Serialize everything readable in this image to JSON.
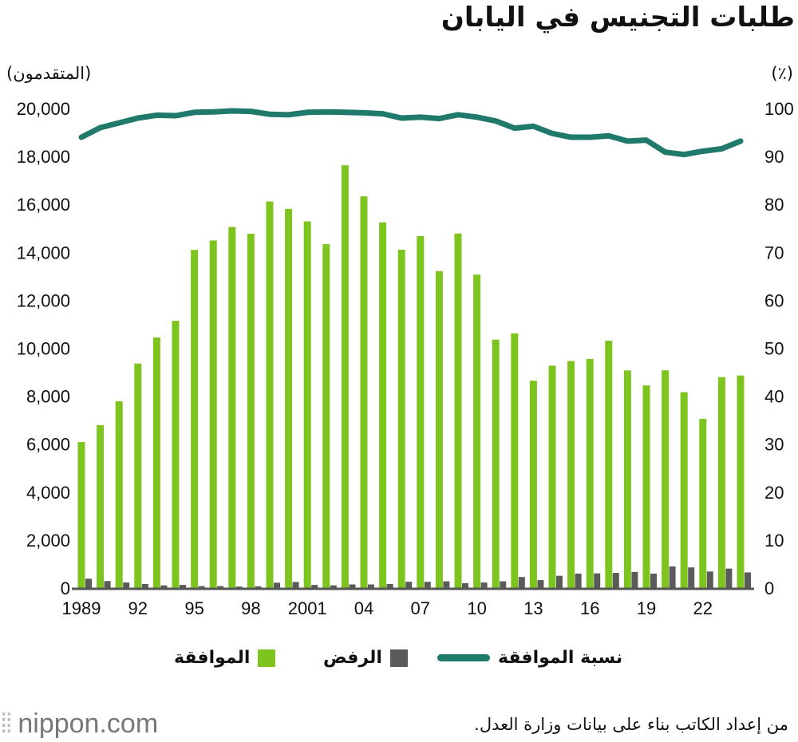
{
  "chart_data": {
    "type": "bar+line",
    "title": "طلبات التجنيس في اليابان",
    "ylabel_left": "(المتقدمون)",
    "ylabel_right": "(٪)",
    "ylim_left": [
      0,
      20000
    ],
    "ylim_right": [
      0,
      100
    ],
    "yticks_left": [
      "0",
      "2,000",
      "4,000",
      "6,000",
      "8,000",
      "10,000",
      "12,000",
      "14,000",
      "16,000",
      "18,000",
      "20,000"
    ],
    "yticks_right": [
      "0",
      "10",
      "20",
      "30",
      "40",
      "50",
      "60",
      "70",
      "80",
      "90",
      "100"
    ],
    "x": [
      1989,
      1990,
      1991,
      1992,
      1993,
      1994,
      1995,
      1996,
      1997,
      1998,
      1999,
      2000,
      2001,
      2002,
      2003,
      2004,
      2005,
      2006,
      2007,
      2008,
      2009,
      2010,
      2011,
      2012,
      2013,
      2014,
      2015,
      2016,
      2017,
      2018,
      2019,
      2020,
      2021,
      2022,
      2023,
      2024
    ],
    "xtick_labels": {
      "1989": "1989",
      "1992": "92",
      "1995": "95",
      "1998": "98",
      "2001": "2001",
      "2004": "04",
      "2007": "07",
      "2010": "10",
      "2013": "13",
      "2016": "16",
      "2019": "19",
      "2022": "22"
    },
    "grid": false,
    "legend_position": "bottom",
    "series": [
      {
        "name": "الموافقة",
        "type": "bar",
        "axis": "left",
        "color": "#7ec41f",
        "values": [
          6089,
          6794,
          7788,
          9363,
          10452,
          11146,
          14104,
          14495,
          15061,
          14779,
          16120,
          15812,
          15291,
          14339,
          17633,
          16336,
          15251,
          14108,
          14680,
          13218,
          14785,
          13072,
          10359,
          10622,
          8646,
          9277,
          9469,
          9554,
          10315,
          9074,
          8453,
          9079,
          8167,
          7059,
          8800,
          8863
        ]
      },
      {
        "name": "الرفض",
        "type": "bar",
        "axis": "left",
        "color": "#5a5a5a",
        "values": [
          390,
          290,
          230,
          170,
          110,
          130,
          80,
          80,
          60,
          70,
          220,
          250,
          130,
          110,
          150,
          150,
          170,
          260,
          260,
          280,
          200,
          230,
          280,
          460,
          330,
          510,
          600,
          610,
          630,
          670,
          600,
          900,
          860,
          690,
          810,
          650
        ]
      },
      {
        "name": "نسبة الموافقة",
        "type": "line",
        "axis": "right",
        "color": "#1f7a6b",
        "values": [
          94.0,
          96.0,
          97.0,
          98.0,
          98.6,
          98.5,
          99.2,
          99.3,
          99.5,
          99.4,
          98.8,
          98.7,
          99.2,
          99.3,
          99.2,
          99.1,
          98.9,
          98.0,
          98.2,
          97.9,
          98.7,
          98.2,
          97.4,
          95.9,
          96.3,
          94.8,
          94.0,
          94.0,
          94.3,
          93.2,
          93.4,
          90.9,
          90.4,
          91.1,
          91.6,
          93.2
        ]
      }
    ]
  },
  "source": "من إعداد الكاتب بناء على بيانات وزارة العدل.",
  "logo": "nippon.com"
}
